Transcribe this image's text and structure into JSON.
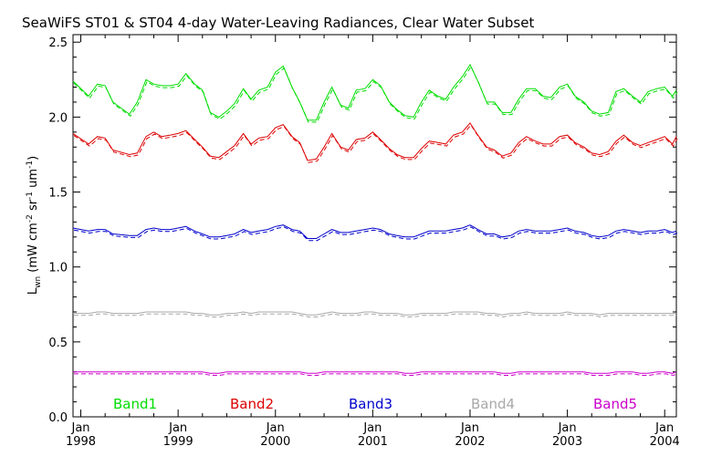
{
  "chart_data": {
    "type": "line",
    "title": "SeaWiFS ST01 & ST04 4-day Water-Leaving Radiances, Clear Water Subset",
    "ylabel": {
      "base": "L",
      "sub": "wn",
      "rest_a": " (mW cm",
      "sup_a": "-2",
      "rest_b": " sr",
      "sup_b": "-1",
      "rest_c": " um",
      "sup_c": "-1",
      "rest_d": ")"
    },
    "ylim": [
      0.0,
      2.55
    ],
    "xlim": [
      1997.92,
      2004.12
    ],
    "y_ticks": [
      "0.0",
      "0.5",
      "1.0",
      "1.5",
      "2.0",
      "2.5"
    ],
    "y_tick_values": [
      0.0,
      0.5,
      1.0,
      1.5,
      2.0,
      2.5
    ],
    "x_ticks": [
      {
        "value": 1998.0,
        "month": "Jan",
        "year": "1998"
      },
      {
        "value": 1999.0,
        "month": "Jan",
        "year": "1999"
      },
      {
        "value": 2000.0,
        "month": "Jan",
        "year": "2000"
      },
      {
        "value": 2001.0,
        "month": "Jan",
        "year": "2001"
      },
      {
        "value": 2002.0,
        "month": "Jan",
        "year": "2002"
      },
      {
        "value": 2003.0,
        "month": "Jan",
        "year": "2003"
      },
      {
        "value": 2004.0,
        "month": "Jan",
        "year": "2004"
      }
    ],
    "grid": false,
    "legend": "bottom, horizontal inside plot",
    "x": [
      1997.92,
      1998.08,
      1998.17,
      1998.25,
      1998.33,
      1998.5,
      1998.58,
      1998.67,
      1998.75,
      1998.83,
      1998.92,
      1999.0,
      1999.08,
      1999.17,
      1999.25,
      1999.33,
      1999.42,
      1999.5,
      1999.58,
      1999.67,
      1999.75,
      1999.83,
      1999.92,
      2000.0,
      2000.08,
      2000.17,
      2000.25,
      2000.33,
      2000.42,
      2000.5,
      2000.58,
      2000.67,
      2000.75,
      2000.83,
      2000.92,
      2001.0,
      2001.08,
      2001.17,
      2001.25,
      2001.33,
      2001.42,
      2001.5,
      2001.58,
      2001.67,
      2001.75,
      2001.83,
      2001.92,
      2002.0,
      2002.08,
      2002.17,
      2002.25,
      2002.33,
      2002.42,
      2002.5,
      2002.58,
      2002.67,
      2002.75,
      2002.83,
      2002.92,
      2003.0,
      2003.08,
      2003.17,
      2003.25,
      2003.33,
      2003.42,
      2003.5,
      2003.58,
      2003.67,
      2003.75,
      2003.83,
      2003.92,
      2004.0,
      2004.08,
      2004.12
    ],
    "series": [
      {
        "name": "Band1",
        "color": "#00dd00",
        "values": [
          2.24,
          2.14,
          2.22,
          2.21,
          2.1,
          2.02,
          2.1,
          2.25,
          2.22,
          2.21,
          2.21,
          2.22,
          2.29,
          2.22,
          2.18,
          2.03,
          2.0,
          2.04,
          2.09,
          2.19,
          2.12,
          2.18,
          2.2,
          2.3,
          2.34,
          2.2,
          2.1,
          1.98,
          1.98,
          2.1,
          2.2,
          2.08,
          2.06,
          2.18,
          2.19,
          2.25,
          2.21,
          2.1,
          2.05,
          2.01,
          2.0,
          2.1,
          2.18,
          2.14,
          2.12,
          2.2,
          2.27,
          2.35,
          2.24,
          2.1,
          2.1,
          2.03,
          2.03,
          2.12,
          2.19,
          2.19,
          2.14,
          2.13,
          2.2,
          2.22,
          2.14,
          2.1,
          2.04,
          2.02,
          2.03,
          2.17,
          2.19,
          2.14,
          2.1,
          2.17,
          2.19,
          2.2,
          2.14,
          2.18
        ]
      },
      {
        "name": "Band2",
        "color": "#dd0000",
        "values": [
          1.89,
          1.82,
          1.87,
          1.86,
          1.78,
          1.75,
          1.76,
          1.87,
          1.9,
          1.87,
          1.88,
          1.89,
          1.91,
          1.85,
          1.8,
          1.74,
          1.73,
          1.77,
          1.81,
          1.89,
          1.82,
          1.86,
          1.87,
          1.93,
          1.95,
          1.87,
          1.83,
          1.71,
          1.72,
          1.8,
          1.89,
          1.8,
          1.78,
          1.85,
          1.86,
          1.9,
          1.85,
          1.79,
          1.75,
          1.73,
          1.73,
          1.79,
          1.84,
          1.83,
          1.82,
          1.88,
          1.9,
          1.96,
          1.88,
          1.8,
          1.78,
          1.74,
          1.76,
          1.83,
          1.87,
          1.84,
          1.82,
          1.82,
          1.87,
          1.88,
          1.83,
          1.8,
          1.76,
          1.75,
          1.77,
          1.84,
          1.88,
          1.83,
          1.81,
          1.83,
          1.85,
          1.87,
          1.82,
          1.87
        ]
      },
      {
        "name": "Band3",
        "color": "#0000cc",
        "values": [
          1.26,
          1.24,
          1.25,
          1.25,
          1.22,
          1.21,
          1.21,
          1.25,
          1.26,
          1.25,
          1.25,
          1.26,
          1.27,
          1.24,
          1.22,
          1.2,
          1.2,
          1.21,
          1.22,
          1.25,
          1.23,
          1.24,
          1.25,
          1.27,
          1.28,
          1.25,
          1.24,
          1.19,
          1.19,
          1.22,
          1.25,
          1.23,
          1.23,
          1.24,
          1.25,
          1.26,
          1.25,
          1.22,
          1.21,
          1.2,
          1.2,
          1.22,
          1.24,
          1.24,
          1.24,
          1.25,
          1.26,
          1.28,
          1.25,
          1.22,
          1.22,
          1.2,
          1.21,
          1.24,
          1.25,
          1.24,
          1.24,
          1.24,
          1.25,
          1.26,
          1.24,
          1.23,
          1.21,
          1.2,
          1.21,
          1.24,
          1.25,
          1.24,
          1.23,
          1.24,
          1.24,
          1.25,
          1.23,
          1.24
        ]
      },
      {
        "name": "Band4",
        "color": "#a8a8a8",
        "values": [
          0.69,
          0.69,
          0.7,
          0.7,
          0.69,
          0.69,
          0.69,
          0.7,
          0.7,
          0.7,
          0.7,
          0.7,
          0.7,
          0.69,
          0.69,
          0.68,
          0.68,
          0.69,
          0.69,
          0.7,
          0.69,
          0.7,
          0.7,
          0.7,
          0.7,
          0.7,
          0.69,
          0.68,
          0.68,
          0.69,
          0.7,
          0.69,
          0.69,
          0.69,
          0.7,
          0.7,
          0.69,
          0.69,
          0.69,
          0.68,
          0.68,
          0.69,
          0.69,
          0.69,
          0.69,
          0.7,
          0.7,
          0.7,
          0.7,
          0.69,
          0.69,
          0.68,
          0.69,
          0.69,
          0.7,
          0.69,
          0.69,
          0.69,
          0.69,
          0.7,
          0.69,
          0.69,
          0.69,
          0.68,
          0.69,
          0.69,
          0.69,
          0.69,
          0.69,
          0.69,
          0.69,
          0.69,
          0.69,
          0.69
        ]
      },
      {
        "name": "Band5",
        "color": "#cc00cc",
        "values": [
          0.3,
          0.3,
          0.3,
          0.3,
          0.3,
          0.3,
          0.3,
          0.3,
          0.3,
          0.3,
          0.3,
          0.3,
          0.3,
          0.3,
          0.3,
          0.29,
          0.29,
          0.3,
          0.3,
          0.3,
          0.3,
          0.3,
          0.3,
          0.3,
          0.3,
          0.3,
          0.3,
          0.29,
          0.29,
          0.3,
          0.3,
          0.3,
          0.3,
          0.3,
          0.3,
          0.3,
          0.3,
          0.3,
          0.3,
          0.29,
          0.29,
          0.3,
          0.3,
          0.3,
          0.3,
          0.3,
          0.3,
          0.3,
          0.3,
          0.3,
          0.3,
          0.29,
          0.29,
          0.3,
          0.3,
          0.3,
          0.3,
          0.3,
          0.3,
          0.3,
          0.3,
          0.3,
          0.29,
          0.29,
          0.29,
          0.3,
          0.3,
          0.3,
          0.29,
          0.29,
          0.3,
          0.3,
          0.29,
          0.3
        ]
      }
    ]
  }
}
